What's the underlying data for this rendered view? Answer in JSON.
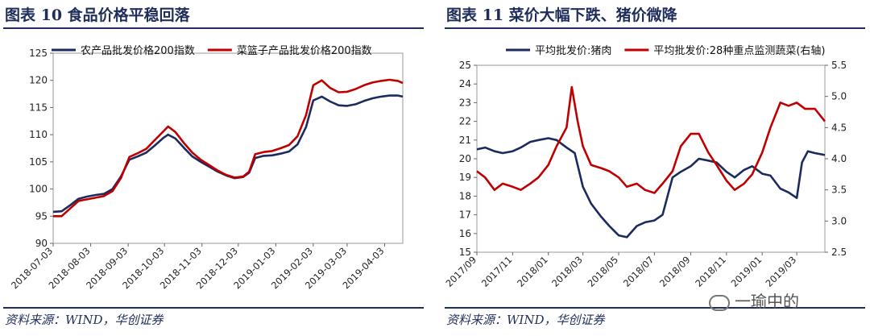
{
  "colors": {
    "navy": "#1c2a5e",
    "red": "#c00000",
    "frame": "#1f2d5a"
  },
  "left": {
    "title": "图表 10   食品价格平稳回落",
    "source": "资料来源：WIND，华创证券"
  },
  "right": {
    "title": "图表 11   菜价大幅下跌、猪价微降",
    "source": "资料来源：WIND，华创证券"
  },
  "watermark": "一瑜中的",
  "chart_data": [
    {
      "type": "line",
      "legend_position": "top",
      "grid": false,
      "y_ticks": [
        "90",
        "95",
        "100",
        "105",
        "110",
        "115",
        "120",
        "125"
      ],
      "ylim": [
        90,
        125
      ],
      "x_ticks": [
        "2018-07-03",
        "2018-08-03",
        "2018-09-03",
        "2018-10-03",
        "2018-11-03",
        "2018-12-03",
        "2019-01-03",
        "2019-02-03",
        "2019-03-03",
        "2019-04-03"
      ],
      "x_range": [
        "2018-07-03",
        "2019-04-18"
      ],
      "series": [
        {
          "name": "农产品批发价格200指数",
          "color": "#1c2a5e",
          "points": [
            [
              "2018-07-03",
              95.8
            ],
            [
              "2018-07-10",
              95.9
            ],
            [
              "2018-07-17",
              97.0
            ],
            [
              "2018-07-24",
              98.2
            ],
            [
              "2018-07-31",
              98.6
            ],
            [
              "2018-08-07",
              98.9
            ],
            [
              "2018-08-14",
              99.1
            ],
            [
              "2018-08-21",
              100.0
            ],
            [
              "2018-08-28",
              102.3
            ],
            [
              "2018-09-04",
              105.4
            ],
            [
              "2018-09-11",
              106.0
            ],
            [
              "2018-09-18",
              106.7
            ],
            [
              "2018-09-25",
              108.0
            ],
            [
              "2018-10-02",
              109.4
            ],
            [
              "2018-10-06",
              110.0
            ],
            [
              "2018-10-12",
              109.3
            ],
            [
              "2018-10-19",
              107.6
            ],
            [
              "2018-10-26",
              106.0
            ],
            [
              "2018-11-02",
              105.0
            ],
            [
              "2018-11-09",
              104.1
            ],
            [
              "2018-11-16",
              103.2
            ],
            [
              "2018-11-23",
              102.5
            ],
            [
              "2018-11-30",
              102.0
            ],
            [
              "2018-12-07",
              102.2
            ],
            [
              "2018-12-12",
              103.0
            ],
            [
              "2018-12-17",
              105.7
            ],
            [
              "2018-12-24",
              106.1
            ],
            [
              "2018-12-31",
              106.2
            ],
            [
              "2019-01-07",
              106.5
            ],
            [
              "2019-01-14",
              106.9
            ],
            [
              "2019-01-21",
              108.2
            ],
            [
              "2019-01-28",
              111.4
            ],
            [
              "2019-02-03",
              116.3
            ],
            [
              "2019-02-10",
              117.0
            ],
            [
              "2019-02-17",
              116.1
            ],
            [
              "2019-02-24",
              115.4
            ],
            [
              "2019-03-03",
              115.3
            ],
            [
              "2019-03-10",
              115.6
            ],
            [
              "2019-03-17",
              116.2
            ],
            [
              "2019-03-24",
              116.7
            ],
            [
              "2019-03-31",
              117.0
            ],
            [
              "2019-04-07",
              117.2
            ],
            [
              "2019-04-14",
              117.2
            ],
            [
              "2019-04-18",
              117.0
            ]
          ]
        },
        {
          "name": "菜篮子产品批发价格200指数",
          "color": "#c00000",
          "points": [
            [
              "2018-07-03",
              95.0
            ],
            [
              "2018-07-10",
              95.0
            ],
            [
              "2018-07-17",
              96.4
            ],
            [
              "2018-07-24",
              97.8
            ],
            [
              "2018-07-31",
              98.1
            ],
            [
              "2018-08-07",
              98.4
            ],
            [
              "2018-08-14",
              98.7
            ],
            [
              "2018-08-21",
              99.6
            ],
            [
              "2018-08-28",
              102.0
            ],
            [
              "2018-09-04",
              105.9
            ],
            [
              "2018-09-11",
              106.6
            ],
            [
              "2018-09-18",
              107.4
            ],
            [
              "2018-09-25",
              109.0
            ],
            [
              "2018-10-02",
              110.6
            ],
            [
              "2018-10-06",
              111.5
            ],
            [
              "2018-10-12",
              110.5
            ],
            [
              "2018-10-19",
              108.5
            ],
            [
              "2018-10-26",
              106.7
            ],
            [
              "2018-11-02",
              105.4
            ],
            [
              "2018-11-09",
              104.4
            ],
            [
              "2018-11-16",
              103.4
            ],
            [
              "2018-11-23",
              102.6
            ],
            [
              "2018-11-30",
              102.1
            ],
            [
              "2018-12-07",
              102.3
            ],
            [
              "2018-12-12",
              103.2
            ],
            [
              "2018-12-17",
              106.4
            ],
            [
              "2018-12-24",
              106.8
            ],
            [
              "2018-12-31",
              107.0
            ],
            [
              "2019-01-07",
              107.5
            ],
            [
              "2019-01-14",
              108.1
            ],
            [
              "2019-01-21",
              109.7
            ],
            [
              "2019-01-28",
              113.6
            ],
            [
              "2019-02-03",
              119.1
            ],
            [
              "2019-02-10",
              120.0
            ],
            [
              "2019-02-17",
              118.6
            ],
            [
              "2019-02-24",
              117.8
            ],
            [
              "2019-03-03",
              117.9
            ],
            [
              "2019-03-10",
              118.4
            ],
            [
              "2019-03-17",
              119.1
            ],
            [
              "2019-03-24",
              119.6
            ],
            [
              "2019-03-31",
              119.9
            ],
            [
              "2019-04-07",
              120.1
            ],
            [
              "2019-04-14",
              119.9
            ],
            [
              "2019-04-18",
              119.5
            ]
          ]
        }
      ]
    },
    {
      "type": "line",
      "legend_position": "top",
      "grid": false,
      "y_ticks": [
        "15",
        "16",
        "17",
        "18",
        "19",
        "20",
        "21",
        "22",
        "23",
        "24",
        "25"
      ],
      "ylim": [
        15,
        25
      ],
      "y2_ticks": [
        "2.5",
        "3.0",
        "3.5",
        "4.0",
        "4.5",
        "5.0",
        "5.5"
      ],
      "y2lim": [
        2.5,
        5.5
      ],
      "x_ticks": [
        "2017/09",
        "2017/11",
        "2018/01",
        "2018/03",
        "2018/05",
        "2018/07",
        "2018/09",
        "2018/11",
        "2019/01",
        "2019/03"
      ],
      "x_range": [
        "2017-09-01",
        "2019-04-18"
      ],
      "series": [
        {
          "name": "平均批发价:猪肉",
          "axis": "left",
          "color": "#1c2a5e",
          "points": [
            [
              "2017-09-01",
              20.5
            ],
            [
              "2017-09-15",
              20.6
            ],
            [
              "2017-10-01",
              20.4
            ],
            [
              "2017-10-15",
              20.3
            ],
            [
              "2017-11-01",
              20.4
            ],
            [
              "2017-11-15",
              20.6
            ],
            [
              "2017-12-01",
              20.9
            ],
            [
              "2017-12-15",
              21.0
            ],
            [
              "2018-01-01",
              21.1
            ],
            [
              "2018-01-15",
              21.0
            ],
            [
              "2018-02-01",
              20.6
            ],
            [
              "2018-02-15",
              20.3
            ],
            [
              "2018-03-01",
              18.5
            ],
            [
              "2018-03-15",
              17.6
            ],
            [
              "2018-04-01",
              16.9
            ],
            [
              "2018-04-15",
              16.4
            ],
            [
              "2018-05-01",
              15.9
            ],
            [
              "2018-05-15",
              15.8
            ],
            [
              "2018-06-01",
              16.4
            ],
            [
              "2018-06-15",
              16.6
            ],
            [
              "2018-07-01",
              16.7
            ],
            [
              "2018-07-15",
              17.0
            ],
            [
              "2018-08-01",
              19.0
            ],
            [
              "2018-08-15",
              19.3
            ],
            [
              "2018-09-01",
              19.6
            ],
            [
              "2018-09-15",
              20.0
            ],
            [
              "2018-10-01",
              19.9
            ],
            [
              "2018-10-15",
              19.8
            ],
            [
              "2018-11-01",
              19.3
            ],
            [
              "2018-11-15",
              19.0
            ],
            [
              "2018-12-01",
              19.4
            ],
            [
              "2018-12-15",
              19.6
            ],
            [
              "2019-01-01",
              19.2
            ],
            [
              "2019-01-15",
              19.1
            ],
            [
              "2019-02-01",
              18.4
            ],
            [
              "2019-02-15",
              18.2
            ],
            [
              "2019-03-01",
              17.9
            ],
            [
              "2019-03-10",
              19.8
            ],
            [
              "2019-03-20",
              20.4
            ],
            [
              "2019-04-01",
              20.3
            ],
            [
              "2019-04-18",
              20.2
            ]
          ]
        },
        {
          "name": "平均批发价:28种重点监测蔬菜(右轴)",
          "axis": "right",
          "color": "#c00000",
          "points": [
            [
              "2017-09-01",
              3.8
            ],
            [
              "2017-09-15",
              3.7
            ],
            [
              "2017-10-01",
              3.5
            ],
            [
              "2017-10-15",
              3.6
            ],
            [
              "2017-11-01",
              3.55
            ],
            [
              "2017-11-15",
              3.5
            ],
            [
              "2017-12-01",
              3.6
            ],
            [
              "2017-12-15",
              3.7
            ],
            [
              "2018-01-01",
              3.9
            ],
            [
              "2018-01-15",
              4.2
            ],
            [
              "2018-02-01",
              4.5
            ],
            [
              "2018-02-10",
              5.15
            ],
            [
              "2018-02-20",
              4.6
            ],
            [
              "2018-03-01",
              4.2
            ],
            [
              "2018-03-15",
              3.9
            ],
            [
              "2018-04-01",
              3.85
            ],
            [
              "2018-04-15",
              3.8
            ],
            [
              "2018-05-01",
              3.7
            ],
            [
              "2018-05-15",
              3.55
            ],
            [
              "2018-06-01",
              3.6
            ],
            [
              "2018-06-15",
              3.5
            ],
            [
              "2018-07-01",
              3.45
            ],
            [
              "2018-07-15",
              3.6
            ],
            [
              "2018-08-01",
              3.8
            ],
            [
              "2018-08-15",
              4.2
            ],
            [
              "2018-09-01",
              4.4
            ],
            [
              "2018-09-15",
              4.4
            ],
            [
              "2018-10-01",
              4.1
            ],
            [
              "2018-10-15",
              3.9
            ],
            [
              "2018-11-01",
              3.65
            ],
            [
              "2018-11-15",
              3.5
            ],
            [
              "2018-12-01",
              3.6
            ],
            [
              "2018-12-15",
              3.75
            ],
            [
              "2019-01-01",
              4.1
            ],
            [
              "2019-01-15",
              4.5
            ],
            [
              "2019-02-01",
              4.9
            ],
            [
              "2019-02-15",
              4.85
            ],
            [
              "2019-03-01",
              4.9
            ],
            [
              "2019-03-15",
              4.8
            ],
            [
              "2019-04-01",
              4.8
            ],
            [
              "2019-04-18",
              4.6
            ]
          ]
        }
      ]
    }
  ]
}
